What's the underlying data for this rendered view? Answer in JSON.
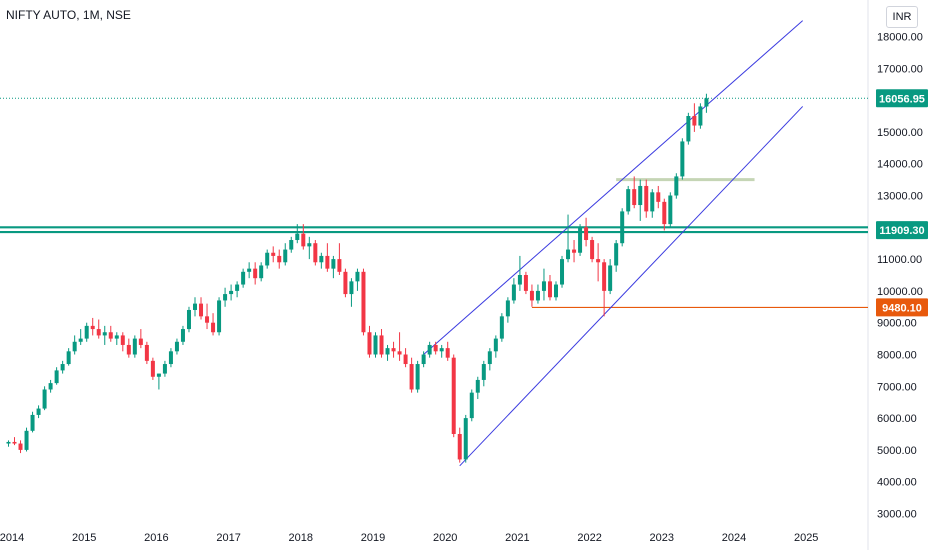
{
  "header": {
    "title": "NIFTY AUTO, 1M, NSE",
    "currency": "INR"
  },
  "colors": {
    "up": "#089981",
    "down": "#f23645",
    "channel": "#3c3ce0",
    "support": "#089981",
    "orange": "#e8590c",
    "zone": "#c5d5b5",
    "last": "#089981"
  },
  "chart_data": {
    "type": "candlestick",
    "title": "NIFTY AUTO, 1M, NSE",
    "ylim": [
      2800,
      19000
    ],
    "y_ticks": [
      3000,
      4000,
      5000,
      6000,
      7000,
      8000,
      9000,
      10000,
      11000,
      12000,
      13000,
      14000,
      15000,
      16000,
      17000,
      18000
    ],
    "y_tick_labels": [
      "3000.00",
      "4000.00",
      "5000.00",
      "6000.00",
      "7000.00",
      "8000.00",
      "9000.00",
      "10000.00",
      "11000.00",
      "12000.00",
      "13000.00",
      "14000.00",
      "15000.00",
      "16000.00",
      "17000.00",
      "18000.00"
    ],
    "x_ticks": [
      "2014",
      "2015",
      "2016",
      "2017",
      "2018",
      "2019",
      "2020",
      "2021",
      "2022",
      "2023",
      "2024",
      "2025"
    ],
    "price_labels": [
      {
        "value": 16056.95,
        "text": "16056.95",
        "role": "last"
      },
      {
        "value": 11909.3,
        "text": "11909.30",
        "role": "support"
      },
      {
        "value": 9480.1,
        "text": "9480.10",
        "role": "orange"
      }
    ],
    "horizontal_lines": [
      {
        "value": 12000,
        "role": "support"
      },
      {
        "value": 11850,
        "role": "support"
      },
      {
        "value": 9480.1,
        "role": "orange",
        "from": "2021-03",
        "to": "2026-05"
      },
      {
        "value": 13500,
        "role": "zone",
        "from": "2022-05",
        "to": "2024-04"
      }
    ],
    "channel_lines": [
      {
        "from": [
          "2019-09",
          8000
        ],
        "to": [
          "2024-12",
          18500
        ]
      },
      {
        "from": [
          "2020-03",
          4500
        ],
        "to": [
          "2024-12",
          15800
        ]
      }
    ],
    "candles_start": "2013-12",
    "candles": [
      [
        5200,
        5300,
        5100,
        5250
      ],
      [
        5250,
        5400,
        5150,
        5200
      ],
      [
        5200,
        5300,
        4900,
        5000
      ],
      [
        5000,
        5700,
        4950,
        5600
      ],
      [
        5600,
        6200,
        5550,
        6100
      ],
      [
        6100,
        6400,
        6000,
        6300
      ],
      [
        6300,
        7000,
        6250,
        6900
      ],
      [
        6900,
        7200,
        6800,
        7100
      ],
      [
        7100,
        7600,
        7050,
        7500
      ],
      [
        7500,
        7800,
        7400,
        7700
      ],
      [
        7700,
        8200,
        7650,
        8100
      ],
      [
        8100,
        8600,
        8000,
        8400
      ],
      [
        8400,
        8800,
        8300,
        8500
      ],
      [
        8500,
        9000,
        8400,
        8900
      ],
      [
        8900,
        9150,
        8600,
        8800
      ],
      [
        8800,
        9100,
        8500,
        8600
      ],
      [
        8600,
        8900,
        8300,
        8700
      ],
      [
        8700,
        8900,
        8400,
        8500
      ],
      [
        8500,
        8700,
        8300,
        8600
      ],
      [
        8600,
        8700,
        8100,
        8300
      ],
      [
        8300,
        8500,
        7900,
        8000
      ],
      [
        8000,
        8600,
        7900,
        8500
      ],
      [
        8500,
        8800,
        8200,
        8300
      ],
      [
        8300,
        8400,
        7700,
        7800
      ],
      [
        7800,
        7900,
        7200,
        7300
      ],
      [
        7300,
        7400,
        6900,
        7400
      ],
      [
        7400,
        7800,
        7300,
        7700
      ],
      [
        7700,
        8200,
        7600,
        8100
      ],
      [
        8100,
        8500,
        8000,
        8400
      ],
      [
        8400,
        8900,
        8300,
        8800
      ],
      [
        8800,
        9500,
        8700,
        9400
      ],
      [
        9400,
        9800,
        9200,
        9600
      ],
      [
        9600,
        9800,
        9100,
        9200
      ],
      [
        9200,
        9600,
        8800,
        9000
      ],
      [
        9000,
        9300,
        8600,
        8700
      ],
      [
        8700,
        9800,
        8600,
        9700
      ],
      [
        9700,
        10100,
        9500,
        9900
      ],
      [
        9900,
        10200,
        9700,
        10000
      ],
      [
        10000,
        10300,
        9800,
        10200
      ],
      [
        10200,
        10700,
        10100,
        10600
      ],
      [
        10600,
        10900,
        10400,
        10700
      ],
      [
        10700,
        10900,
        10200,
        10400
      ],
      [
        10400,
        10900,
        10300,
        10800
      ],
      [
        10800,
        11300,
        10700,
        11200
      ],
      [
        11200,
        11400,
        10900,
        11100
      ],
      [
        11100,
        11300,
        10700,
        10900
      ],
      [
        10900,
        11500,
        10800,
        11300
      ],
      [
        11300,
        11700,
        11200,
        11600
      ],
      [
        11600,
        12100,
        11500,
        11800
      ],
      [
        11800,
        12100,
        11300,
        11400
      ],
      [
        11400,
        11700,
        11000,
        11500
      ],
      [
        11500,
        11600,
        10800,
        10900
      ],
      [
        10900,
        11200,
        10700,
        11100
      ],
      [
        11100,
        11500,
        10600,
        10700
      ],
      [
        10700,
        11100,
        10400,
        11000
      ],
      [
        11000,
        11500,
        10500,
        10600
      ],
      [
        10600,
        10700,
        9800,
        9900
      ],
      [
        9900,
        10400,
        9500,
        10300
      ],
      [
        10300,
        10700,
        10000,
        10600
      ],
      [
        10600,
        10700,
        8600,
        8700
      ],
      [
        8700,
        8900,
        7900,
        8000
      ],
      [
        8000,
        8700,
        7900,
        8600
      ],
      [
        8600,
        8800,
        7900,
        8000
      ],
      [
        8000,
        8300,
        7800,
        8200
      ],
      [
        8200,
        8400,
        7900,
        8100
      ],
      [
        8100,
        8700,
        7800,
        8000
      ],
      [
        8000,
        8200,
        7600,
        7700
      ],
      [
        7700,
        7900,
        6800,
        6900
      ],
      [
        6900,
        7800,
        6800,
        7700
      ],
      [
        7700,
        8100,
        7600,
        8000
      ],
      [
        8000,
        8400,
        7900,
        8300
      ],
      [
        8300,
        8400,
        8000,
        8100
      ],
      [
        8100,
        8300,
        7900,
        8200
      ],
      [
        8200,
        8400,
        7800,
        7900
      ],
      [
        7900,
        8000,
        5400,
        5500
      ],
      [
        5500,
        5700,
        4600,
        4700
      ],
      [
        4700,
        6100,
        4600,
        6000
      ],
      [
        6000,
        6900,
        5900,
        6800
      ],
      [
        6800,
        7300,
        6600,
        7200
      ],
      [
        7200,
        7800,
        7000,
        7700
      ],
      [
        7700,
        8200,
        7500,
        8100
      ],
      [
        8100,
        8600,
        7900,
        8500
      ],
      [
        8500,
        9300,
        8400,
        9200
      ],
      [
        9200,
        9800,
        9000,
        9700
      ],
      [
        9700,
        10400,
        9600,
        10200
      ],
      [
        10200,
        11100,
        10000,
        10500
      ],
      [
        10500,
        10600,
        9900,
        10000
      ],
      [
        10000,
        10200,
        9500,
        9700
      ],
      [
        9700,
        10200,
        9600,
        10000
      ],
      [
        10000,
        10700,
        9700,
        10300
      ],
      [
        10300,
        10500,
        9700,
        9800
      ],
      [
        9800,
        10300,
        9700,
        10200
      ],
      [
        10200,
        11100,
        10100,
        11000
      ],
      [
        11000,
        12400,
        10900,
        11300
      ],
      [
        11300,
        11600,
        10900,
        11200
      ],
      [
        11200,
        12100,
        11100,
        12000
      ],
      [
        12000,
        12300,
        11400,
        11600
      ],
      [
        11600,
        11700,
        10900,
        11000
      ],
      [
        11000,
        11500,
        10300,
        10900
      ],
      [
        10900,
        11000,
        9200,
        10000
      ],
      [
        10000,
        11000,
        9900,
        10800
      ],
      [
        10800,
        11600,
        10600,
        11500
      ],
      [
        11500,
        12600,
        11400,
        12500
      ],
      [
        12500,
        13300,
        12400,
        13200
      ],
      [
        13200,
        13600,
        12600,
        12700
      ],
      [
        12700,
        13500,
        12200,
        13300
      ],
      [
        13300,
        13500,
        12300,
        12500
      ],
      [
        12500,
        13200,
        12300,
        13100
      ],
      [
        13100,
        13300,
        12600,
        12800
      ],
      [
        12800,
        12900,
        11900,
        12100
      ],
      [
        12100,
        13100,
        12000,
        13000
      ],
      [
        13000,
        13700,
        12900,
        13600
      ],
      [
        13600,
        14800,
        13500,
        14700
      ],
      [
        14700,
        15600,
        14600,
        15500
      ],
      [
        15500,
        15900,
        15000,
        15200
      ],
      [
        15200,
        15900,
        15100,
        15800
      ],
      [
        15800,
        16200,
        15600,
        16057
      ]
    ]
  }
}
